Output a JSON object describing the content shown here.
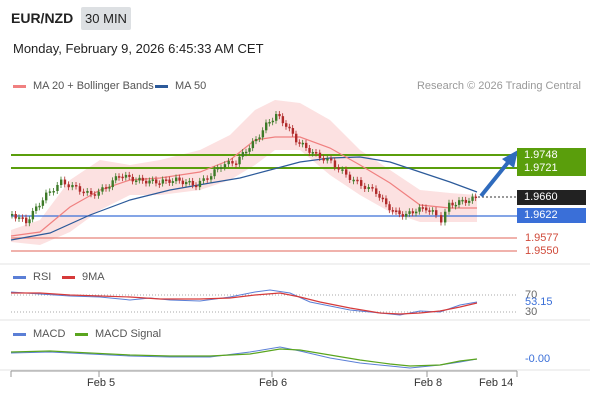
{
  "header": {
    "pair": "EUR/NZD",
    "timeframe": "30 MIN",
    "datetime": "Monday, February 9, 2026 6:45:33 AM CET"
  },
  "legend": {
    "ma20_bb": "MA 20 + Bollinger Bands",
    "ma50": "MA 50",
    "ma20_color": "#f08080",
    "ma50_color": "#2c5a9a"
  },
  "credit": "Research © 2026 Trading Central",
  "levels": {
    "r2": "1.9748",
    "r1": "1.9721",
    "last": "1.9660",
    "pivot": "1.9622",
    "s1": "1.9577",
    "s2": "1.9550"
  },
  "rsi": {
    "label": "RSI",
    "ma_label": "9MA",
    "level_70": "70",
    "value": "53.15",
    "level_30": "30"
  },
  "macd": {
    "label": "MACD",
    "signal_label": "MACD Signal",
    "value": "-0.00"
  },
  "xaxis": {
    "labels": [
      "Feb 5",
      "Feb 6",
      "Feb 8",
      "Feb 14"
    ]
  },
  "colors": {
    "resistance": "#5a9e0c",
    "pivot": "#3a6fd8",
    "support": "#e8847a",
    "up_candle": "#3d7a28",
    "down_candle": "#b02a2a",
    "last_box": "#222222",
    "arrow": "#2f6bbd"
  }
}
